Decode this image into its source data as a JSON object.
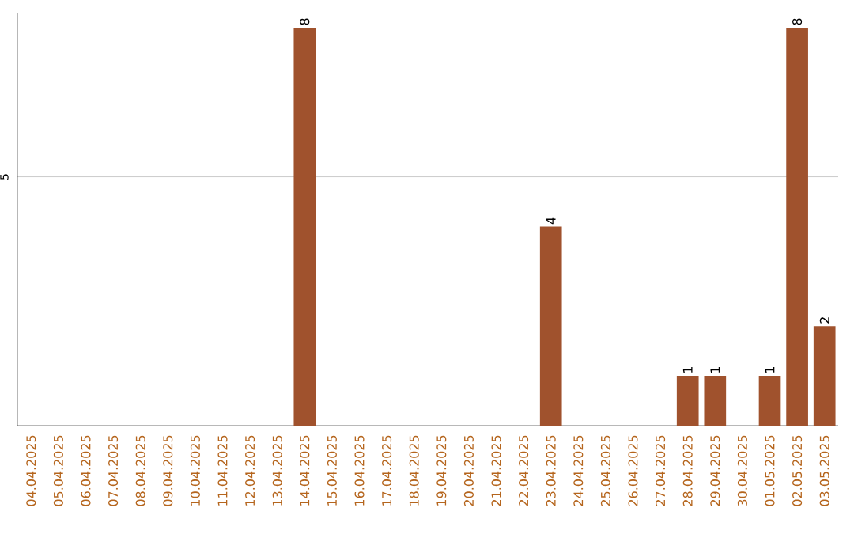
{
  "chart_data": {
    "type": "bar",
    "categories": [
      "04.04.2025",
      "05.04.2025",
      "06.04.2025",
      "07.04.2025",
      "08.04.2025",
      "09.04.2025",
      "10.04.2025",
      "11.04.2025",
      "12.04.2025",
      "13.04.2025",
      "14.04.2025",
      "15.04.2025",
      "16.04.2025",
      "17.04.2025",
      "18.04.2025",
      "19.04.2025",
      "20.04.2025",
      "21.04.2025",
      "22.04.2025",
      "23.04.2025",
      "24.04.2025",
      "25.04.2025",
      "26.04.2025",
      "27.04.2025",
      "28.04.2025",
      "29.04.2025",
      "30.04.2025",
      "01.05.2025",
      "02.05.2025",
      "03.05.2025"
    ],
    "values": [
      0,
      0,
      0,
      0,
      0,
      0,
      0,
      0,
      0,
      0,
      8,
      0,
      0,
      0,
      0,
      0,
      0,
      0,
      0,
      4,
      0,
      0,
      0,
      0,
      1,
      1,
      0,
      1,
      8,
      2
    ],
    "value_labels": [
      null,
      null,
      null,
      null,
      null,
      null,
      null,
      null,
      null,
      null,
      "8",
      null,
      null,
      null,
      null,
      null,
      null,
      null,
      null,
      "4",
      null,
      null,
      null,
      null,
      "1",
      "1",
      null,
      "1",
      "8",
      "2"
    ],
    "color": "#a0522d",
    "ylim": [
      0,
      8.3
    ],
    "yticks": [
      5
    ],
    "grid": "y"
  }
}
